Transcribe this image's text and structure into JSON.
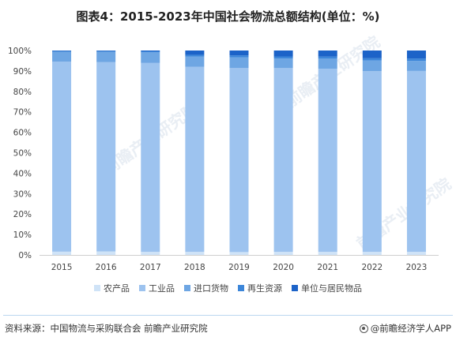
{
  "title": "图表4：2015-2023年中国社会物流总额结构(单位：%)",
  "watermark": "前瞻产业研究院",
  "chart_data": {
    "type": "bar",
    "stacked": true,
    "title": "图表4：2015-2023年中国社会物流总额结构(单位：%)",
    "categories": [
      "2015",
      "2016",
      "2017",
      "2018",
      "2019",
      "2020",
      "2021",
      "2022",
      "2023"
    ],
    "y_ticks": [
      "0%",
      "10%",
      "20%",
      "30%",
      "40%",
      "50%",
      "60%",
      "70%",
      "80%",
      "90%",
      "100%"
    ],
    "ylim": [
      0,
      100
    ],
    "grid": false,
    "legend_position": "bottom",
    "series": [
      {
        "name": "农产品",
        "color": "#cfe3f7",
        "values": [
          1.6,
          1.7,
          1.5,
          1.5,
          1.4,
          1.5,
          1.5,
          1.5,
          1.5
        ]
      },
      {
        "name": "工业品",
        "color": "#9dc3ef",
        "values": [
          92.9,
          92.6,
          92.4,
          90.5,
          90.1,
          89.9,
          89.6,
          88.4,
          88.5
        ]
      },
      {
        "name": "进口货物",
        "color": "#6ea6e3",
        "values": [
          4.9,
          5.0,
          5.2,
          5.0,
          5.2,
          4.7,
          4.9,
          5.2,
          4.9
        ]
      },
      {
        "name": "再生资源",
        "color": "#3c86d9",
        "values": [
          0.3,
          0.4,
          0.5,
          0.9,
          0.9,
          1.0,
          1.0,
          1.1,
          1.2
        ]
      },
      {
        "name": "单位与居民物品",
        "color": "#1c63c8",
        "values": [
          0.3,
          0.3,
          0.4,
          2.1,
          2.4,
          2.9,
          3.0,
          3.8,
          3.9
        ]
      }
    ]
  },
  "footer": {
    "source": "资料来源：中国物流与采购联合会 前瞻产业研究院",
    "brand": "@前瞻经济学人APP"
  }
}
